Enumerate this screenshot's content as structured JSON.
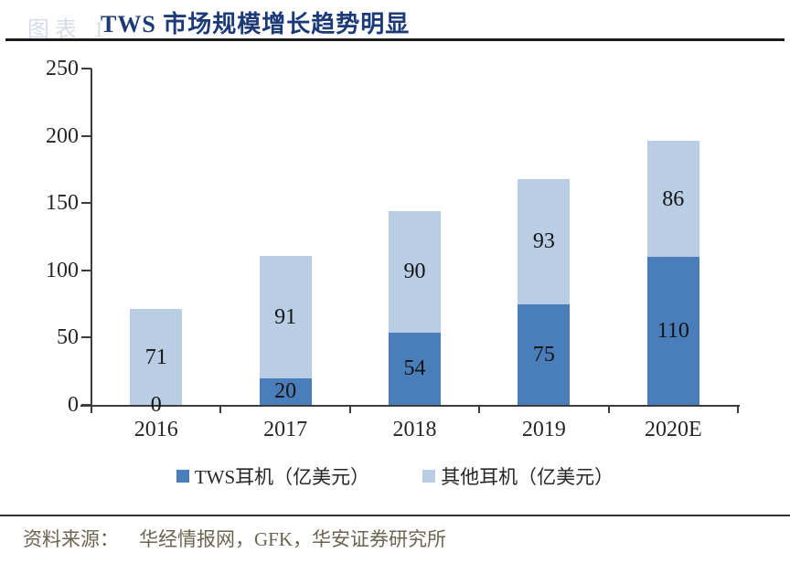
{
  "header": {
    "figure_label": "图表 1",
    "title": "TWS 市场规模增长趋势明显"
  },
  "chart_data": {
    "type": "bar",
    "stacked": true,
    "title": "TWS 市场规模增长趋势明显",
    "categories": [
      "2016",
      "2017",
      "2018",
      "2019",
      "2020E"
    ],
    "series": [
      {
        "name": "TWS耳机（亿美元）",
        "values": [
          0,
          20,
          54,
          75,
          110
        ],
        "color": "#4A7EBB"
      },
      {
        "name": "其他耳机（亿美元）",
        "values": [
          71,
          91,
          90,
          93,
          86
        ],
        "color": "#B9CDE5"
      }
    ],
    "xlabel": "",
    "ylabel": "",
    "ylim": [
      0,
      250
    ],
    "yticks": [
      0,
      50,
      100,
      150,
      200,
      250
    ],
    "grid": false,
    "data_labels": true,
    "legend_position": "bottom",
    "axis_color": "#3c3c3c",
    "label_color": "#141414"
  },
  "footer": {
    "source_label": "资料来源：",
    "source_text": "华经情报网，GFK，华安证券研究所"
  }
}
